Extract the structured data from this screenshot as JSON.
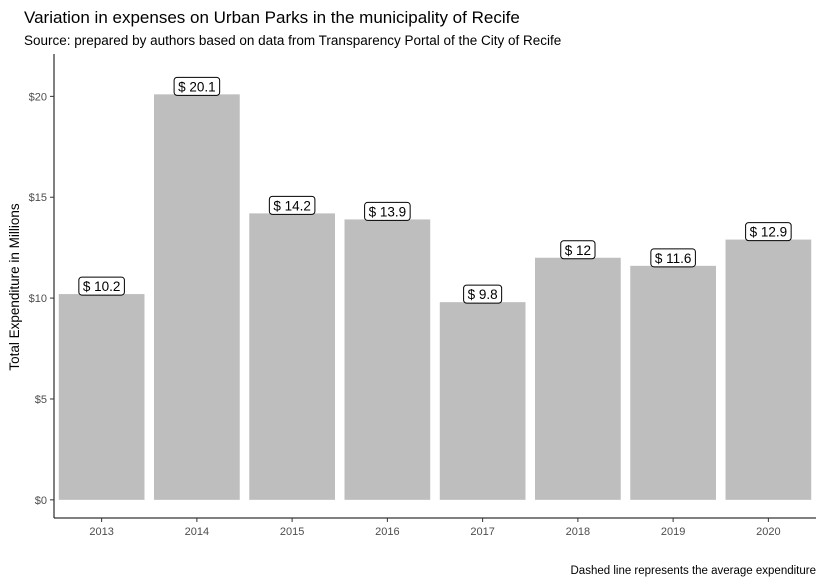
{
  "chart_data": {
    "type": "bar",
    "title": "Variation in expenses on Urban Parks in the municipality of Recife",
    "subtitle": "Source: prepared by authors based on data from Transparency Portal of the City of Recife",
    "caption": "Dashed line represents the average expenditure",
    "xlabel": "",
    "ylabel": "Total Expenditure in Millions",
    "categories": [
      "2013",
      "2014",
      "2015",
      "2016",
      "2017",
      "2018",
      "2019",
      "2020"
    ],
    "values": [
      10.2,
      20.1,
      14.2,
      13.9,
      9.8,
      12,
      11.6,
      12.9
    ],
    "data_labels": [
      "$ 10.2",
      "$ 20.1",
      "$ 14.2",
      "$ 13.9",
      "$ 9.8",
      "$ 12",
      "$ 11.6",
      "$ 12.9"
    ],
    "ylim": [
      -0.9,
      22.1
    ],
    "yticks": [
      0,
      5,
      10,
      15,
      20
    ],
    "ytick_labels": [
      "$0",
      "$5",
      "$10",
      "$15",
      "$20"
    ],
    "bar_color": "#bebebe",
    "grid": false,
    "legend": "none"
  }
}
